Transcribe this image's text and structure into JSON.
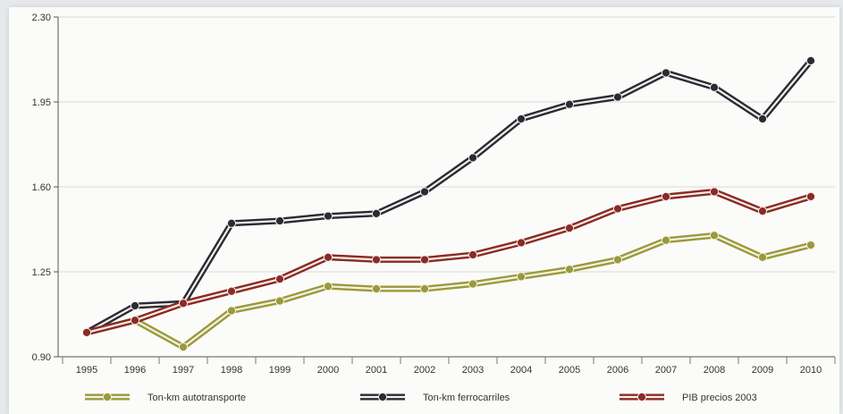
{
  "chart_data": {
    "type": "line",
    "title": "",
    "xlabel": "",
    "ylabel": "",
    "x": [
      "1995",
      "1996",
      "1997",
      "1998",
      "1999",
      "2000",
      "2001",
      "2002",
      "2003",
      "2004",
      "2005",
      "2006",
      "2007",
      "2008",
      "2009",
      "2010"
    ],
    "ylim": [
      0.9,
      2.3
    ],
    "yticks": [
      "0.90",
      "1.25",
      "1.60",
      "1.95",
      "2.30"
    ],
    "grid": "horizontal",
    "legend_position": "bottom",
    "series": [
      {
        "name": "Ton-km autotransporte",
        "color": "#9a9a3a",
        "values": [
          1.0,
          1.05,
          0.94,
          1.09,
          1.13,
          1.19,
          1.18,
          1.18,
          1.2,
          1.23,
          1.26,
          1.3,
          1.38,
          1.4,
          1.31,
          1.36
        ]
      },
      {
        "name": "Ton-km ferrocarriles",
        "color": "#2a2a38",
        "values": [
          1.0,
          1.11,
          1.12,
          1.45,
          1.46,
          1.48,
          1.49,
          1.58,
          1.72,
          1.88,
          1.94,
          1.97,
          2.07,
          2.01,
          1.88,
          2.12
        ]
      },
      {
        "name": "PIB precios 2003",
        "color": "#8b2a26",
        "values": [
          1.0,
          1.05,
          1.12,
          1.17,
          1.22,
          1.31,
          1.3,
          1.3,
          1.32,
          1.37,
          1.43,
          1.51,
          1.56,
          1.58,
          1.5,
          1.56
        ]
      }
    ]
  }
}
